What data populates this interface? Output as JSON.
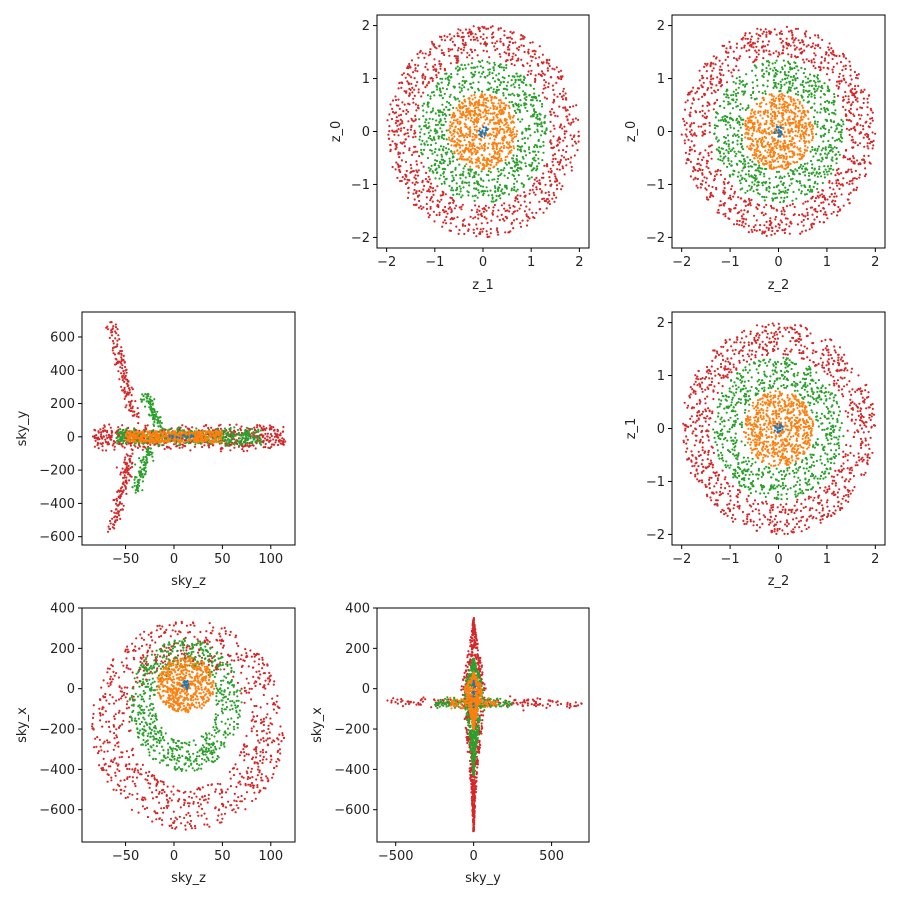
{
  "colors": {
    "series": [
      "#1f77b4",
      "#ff7f0e",
      "#2ca02c",
      "#d62728"
    ],
    "axes": "#000000",
    "text": "#222222",
    "background": "#ffffff"
  },
  "chart_data": [
    {
      "id": "z1-z0",
      "type": "scatter",
      "xlabel": "z_1",
      "ylabel": "z_0",
      "xlim": [
        -2.2,
        2.2
      ],
      "ylim": [
        -2.2,
        2.2
      ],
      "xticks": [
        -2,
        -1,
        0,
        1,
        2
      ],
      "yticks": [
        -2,
        -1,
        0,
        1,
        2
      ],
      "grid": false,
      "legend": "none",
      "series": [
        {
          "pattern": "disk",
          "center": [
            0,
            0
          ],
          "r_inner": 0,
          "r_outer": 0.1,
          "n": 20
        },
        {
          "pattern": "disk",
          "center": [
            0,
            0
          ],
          "r_inner": 0,
          "r_outer": 0.72,
          "n": 650
        },
        {
          "pattern": "annulus",
          "center": [
            0,
            0
          ],
          "r_inner": 0.75,
          "r_outer": 1.35,
          "n": 750
        },
        {
          "pattern": "annulus",
          "center": [
            0,
            0
          ],
          "r_inner": 1.4,
          "r_outer": 2.0,
          "n": 950
        }
      ]
    },
    {
      "id": "z2-z0",
      "type": "scatter",
      "xlabel": "z_2",
      "ylabel": "z_0",
      "xlim": [
        -2.2,
        2.2
      ],
      "ylim": [
        -2.2,
        2.2
      ],
      "xticks": [
        -2,
        -1,
        0,
        1,
        2
      ],
      "yticks": [
        -2,
        -1,
        0,
        1,
        2
      ],
      "grid": false,
      "legend": "none",
      "series": [
        {
          "pattern": "disk",
          "center": [
            0,
            0
          ],
          "r_inner": 0,
          "r_outer": 0.1,
          "n": 20
        },
        {
          "pattern": "disk",
          "center": [
            0,
            0
          ],
          "r_inner": 0,
          "r_outer": 0.72,
          "n": 650
        },
        {
          "pattern": "annulus",
          "center": [
            0,
            0
          ],
          "r_inner": 0.75,
          "r_outer": 1.35,
          "n": 750
        },
        {
          "pattern": "annulus",
          "center": [
            0,
            0
          ],
          "r_inner": 1.4,
          "r_outer": 2.0,
          "n": 950
        }
      ]
    },
    {
      "id": "skyz-skyy",
      "type": "scatter",
      "xlabel": "sky_z",
      "ylabel": "sky_y",
      "xlim": [
        -95,
        125
      ],
      "ylim": [
        -650,
        750
      ],
      "xticks": [
        -50,
        0,
        50,
        100
      ],
      "yticks": [
        -600,
        -400,
        -200,
        0,
        200,
        400,
        600
      ],
      "grid": false,
      "legend": "none",
      "series": [
        {
          "pattern": "band",
          "x_range": [
            -5,
            20
          ],
          "y_range": [
            -10,
            10
          ],
          "n": 20
        },
        {
          "pattern": "band",
          "x_range": [
            -50,
            50
          ],
          "y_range": [
            -35,
            35
          ],
          "n": 500
        },
        {
          "pattern": "branches",
          "band_x": [
            -60,
            90
          ],
          "band_y": [
            -60,
            60
          ],
          "up_x": [
            -30,
            -15
          ],
          "up_y": [
            60,
            260
          ],
          "down_x": [
            -40,
            -25
          ],
          "down_y": [
            -340,
            -60
          ],
          "n": 700
        },
        {
          "pattern": "branches",
          "band_x": [
            -85,
            115
          ],
          "band_y": [
            -90,
            80
          ],
          "up_x": [
            -65,
            -40
          ],
          "up_y": [
            80,
            690
          ],
          "down_x": [
            -65,
            -45
          ],
          "down_y": [
            -590,
            -90
          ],
          "n": 900
        }
      ]
    },
    {
      "id": "z2-z1",
      "type": "scatter",
      "xlabel": "z_2",
      "ylabel": "z_1",
      "xlim": [
        -2.2,
        2.2
      ],
      "ylim": [
        -2.2,
        2.2
      ],
      "xticks": [
        -2,
        -1,
        0,
        1,
        2
      ],
      "yticks": [
        -2,
        -1,
        0,
        1,
        2
      ],
      "grid": false,
      "legend": "none",
      "series": [
        {
          "pattern": "disk",
          "center": [
            0,
            0
          ],
          "r_inner": 0,
          "r_outer": 0.1,
          "n": 20
        },
        {
          "pattern": "disk",
          "center": [
            0,
            0
          ],
          "r_inner": 0,
          "r_outer": 0.72,
          "n": 650
        },
        {
          "pattern": "annulus",
          "center": [
            0,
            0
          ],
          "r_inner": 0.75,
          "r_outer": 1.35,
          "n": 750
        },
        {
          "pattern": "annulus",
          "center": [
            0,
            0
          ],
          "r_inner": 1.4,
          "r_outer": 2.0,
          "n": 950
        }
      ]
    },
    {
      "id": "skyz-skyx",
      "type": "scatter",
      "xlabel": "sky_z",
      "ylabel": "sky_x",
      "xlim": [
        -95,
        125
      ],
      "ylim": [
        -760,
        400
      ],
      "xticks": [
        -50,
        0,
        50,
        100
      ],
      "yticks": [
        -600,
        -400,
        -200,
        0,
        200,
        400
      ],
      "grid": false,
      "legend": "none",
      "series": [
        {
          "pattern": "ellipse",
          "center": [
            12,
            20
          ],
          "rx": 4,
          "ry": 25,
          "inner": 0,
          "n": 20
        },
        {
          "pattern": "ellipse",
          "center": [
            12,
            20
          ],
          "rx": 30,
          "ry": 140,
          "inner": 0,
          "n": 550
        },
        {
          "pattern": "ellipse",
          "center": [
            12,
            -80
          ],
          "rx": 58,
          "ry": 330,
          "inner": 0.55,
          "n": 700
        },
        {
          "pattern": "ellipse",
          "center": [
            15,
            -180
          ],
          "rx": 100,
          "ry": 520,
          "inner": 0.6,
          "n": 900
        }
      ]
    },
    {
      "id": "skyy-skyx",
      "type": "scatter",
      "xlabel": "sky_y",
      "ylabel": "sky_x",
      "xlim": [
        -620,
        740
      ],
      "ylim": [
        -760,
        400
      ],
      "xticks": [
        -500,
        0,
        500
      ],
      "yticks": [
        -600,
        -400,
        -200,
        0,
        200,
        400
      ],
      "grid": false,
      "legend": "none",
      "series": [
        {
          "pattern": "spindle",
          "center": [
            0,
            0
          ],
          "half_w": 10,
          "y_top": 40,
          "y_bot": -40,
          "arm_x": [
            0,
            0
          ],
          "n": 20
        },
        {
          "pattern": "spindle",
          "center": [
            0,
            0
          ],
          "half_w": 60,
          "y_top": 80,
          "y_bot": -200,
          "arm_x": [
            -150,
            150
          ],
          "n": 500
        },
        {
          "pattern": "spindle",
          "center": [
            0,
            0
          ],
          "half_w": 70,
          "y_top": 150,
          "y_bot": -430,
          "arm_x": [
            -250,
            250
          ],
          "n": 700
        },
        {
          "pattern": "spindle",
          "center": [
            0,
            0
          ],
          "half_w": 80,
          "y_top": 350,
          "y_bot": -710,
          "arm_x": [
            -560,
            700
          ],
          "n": 900
        }
      ]
    }
  ]
}
